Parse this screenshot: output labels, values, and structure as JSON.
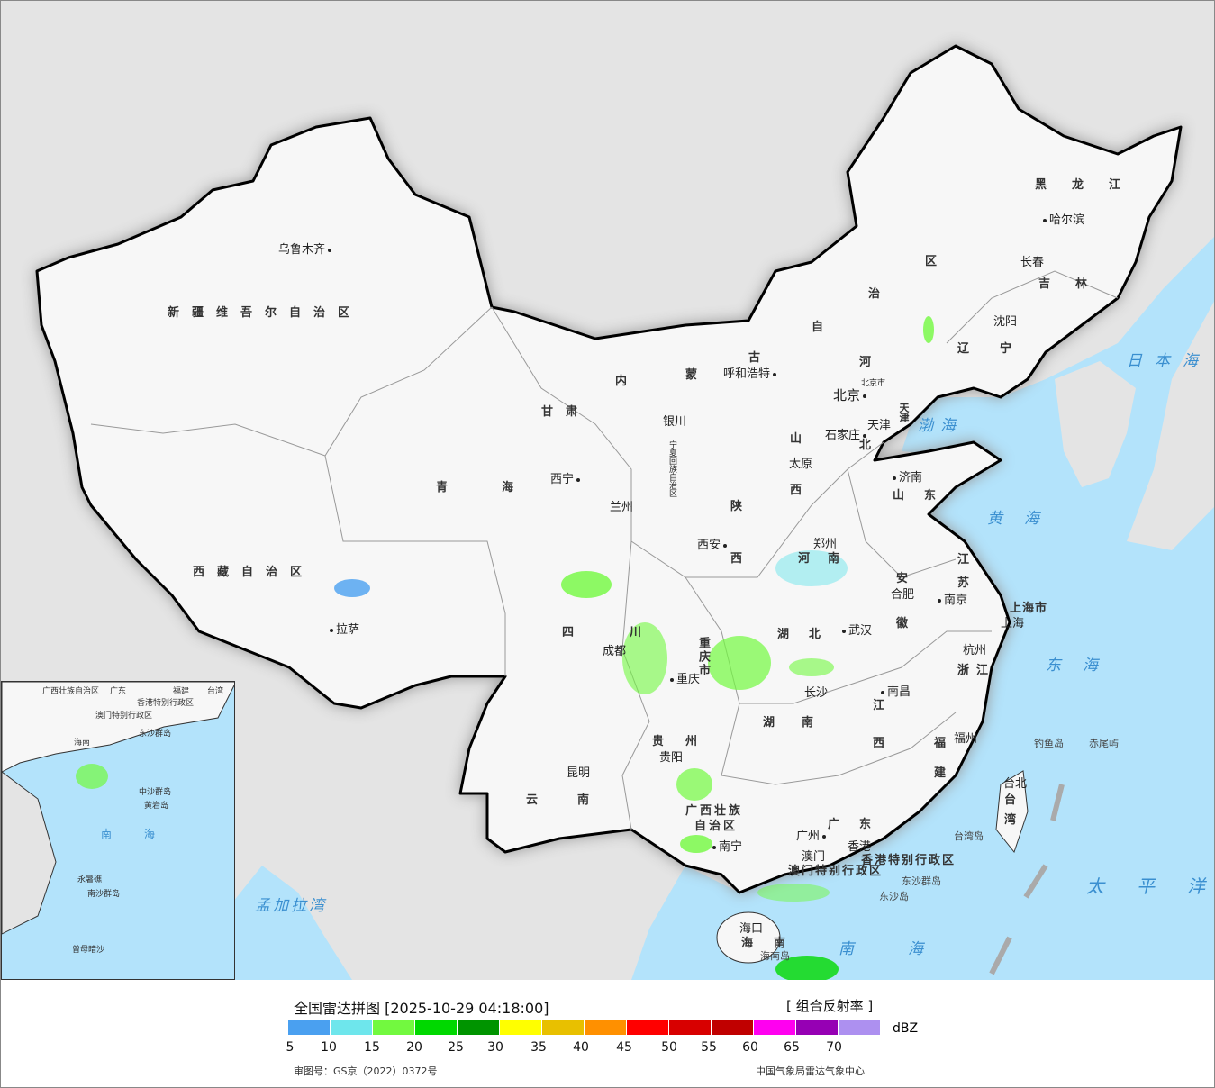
{
  "map": {
    "provinces": [
      "新疆维吾尔自治区",
      "西藏自治区",
      "青海",
      "甘肃",
      "内",
      "蒙",
      "古",
      "自",
      "治",
      "区",
      "黑龙江",
      "吉林",
      "辽宁",
      "河",
      "北",
      "山",
      "西",
      "山东",
      "陕",
      "西",
      "宁夏回族自治区",
      "河南",
      "江",
      "苏",
      "安",
      "徽",
      "湖北",
      "四",
      "川",
      "重庆市",
      "湖南",
      "江",
      "西",
      "浙江",
      "福",
      "建",
      "贵州",
      "云南",
      "广西壮族",
      "自治区",
      "广东",
      "台",
      "湾",
      "海",
      "南",
      "香港特别行政区",
      "澳门特别行政区",
      "天津",
      "北京市"
    ],
    "cities": [
      "乌鲁木齐",
      "哈尔滨",
      "长春",
      "沈阳",
      "呼和浩特",
      "北京",
      "天津",
      "石家庄",
      "太原",
      "济南",
      "银川",
      "西宁",
      "兰州",
      "西安",
      "郑州",
      "合肥",
      "南京",
      "上海",
      "武汉",
      "杭州",
      "成都",
      "重庆",
      "长沙",
      "南昌",
      "福州",
      "贵阳",
      "昆明",
      "南宁",
      "广州",
      "澳门",
      "香港",
      "海口",
      "拉萨",
      "台北",
      "上海市"
    ],
    "seas": [
      "日本海",
      "渤海",
      "黄海",
      "东海",
      "太平洋",
      "南海",
      "孟加拉湾"
    ],
    "islands": [
      "钓鱼岛",
      "赤尾屿",
      "东沙群岛",
      "东沙岛",
      "台湾岛",
      "海南岛"
    ],
    "inset": [
      "广西壮族自治区",
      "广东",
      "福建",
      "台湾",
      "香港特别行政区",
      "澳门特别行政区",
      "海南",
      "东沙群岛",
      "南",
      "海",
      "中沙群岛",
      "黄岩岛",
      "永暑礁",
      "南沙群岛",
      "曾母暗沙"
    ]
  },
  "legend": {
    "title": "全国雷达拼图 [2025-10-29 04:18:00]",
    "product": "[ 组合反射率 ]",
    "unit": "dBZ",
    "colors": [
      "#4aa0f0",
      "#6ee6ec",
      "#72f93f",
      "#00d800",
      "#009400",
      "#ffff00",
      "#e8c000",
      "#ff9000",
      "#ff0000",
      "#d80000",
      "#c00000",
      "#ff00f0",
      "#9600b4",
      "#ad90f0"
    ],
    "ticks": [
      "5",
      "10",
      "15",
      "20",
      "25",
      "30",
      "35",
      "40",
      "45",
      "50",
      "55",
      "60",
      "65",
      "70"
    ],
    "approval": "审图号：GS京（2022）0372号",
    "source": "中国气象局雷达气象中心"
  }
}
